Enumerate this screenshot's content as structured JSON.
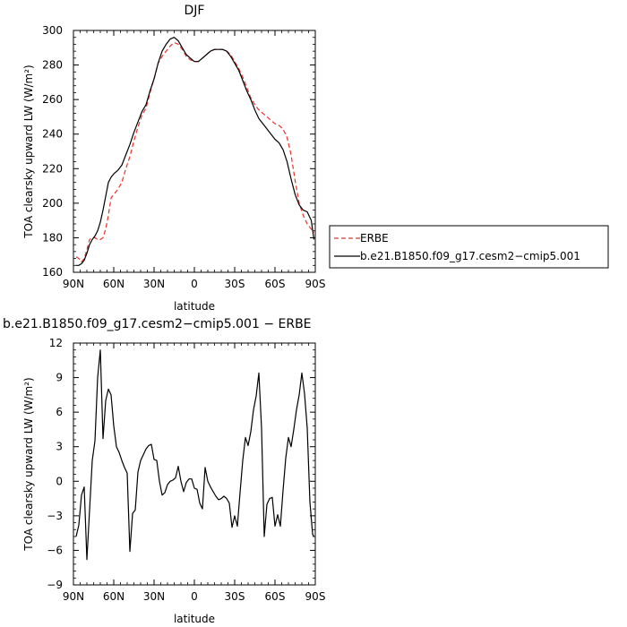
{
  "chart_data": [
    {
      "type": "line",
      "title": "DJF",
      "xlabel": "latitude",
      "ylabel": "TOA clearsky upward LW (W/m²)",
      "xlim": [
        -90,
        90
      ],
      "ylim": [
        160,
        300
      ],
      "x_ticks": [
        {
          "value": -90,
          "label": "90N"
        },
        {
          "value": -60,
          "label": "60N"
        },
        {
          "value": -30,
          "label": "30N"
        },
        {
          "value": 0,
          "label": "0"
        },
        {
          "value": 30,
          "label": "30S"
        },
        {
          "value": 60,
          "label": "60S"
        },
        {
          "value": 90,
          "label": "90S"
        }
      ],
      "y_ticks": [
        160,
        180,
        200,
        220,
        240,
        260,
        280,
        300
      ],
      "legend": "right",
      "series": [
        {
          "name": "ERBE",
          "color": "#e8312a",
          "style": "dashed",
          "x": [
            -88,
            -86,
            -84,
            -82,
            -80,
            -78,
            -76,
            -74,
            -72,
            -70,
            -68,
            -66,
            -64,
            -62,
            -60,
            -57,
            -54,
            -51,
            -48,
            -45,
            -42,
            -39,
            -36,
            -33,
            -30,
            -27,
            -24,
            -21,
            -18,
            -15,
            -12,
            -9,
            -6,
            -3,
            0,
            3,
            6,
            9,
            12,
            15,
            18,
            21,
            24,
            27,
            30,
            33,
            36,
            39,
            42,
            45,
            48,
            51,
            54,
            57,
            60,
            63,
            66,
            69,
            72,
            75,
            78,
            81,
            84,
            87,
            89
          ],
          "y": [
            169,
            168,
            166,
            168,
            173,
            179,
            180,
            180,
            179,
            179,
            180,
            185,
            193,
            203,
            205,
            208,
            212,
            220,
            227,
            236,
            244,
            251,
            255,
            264,
            272,
            281,
            285,
            288,
            291,
            293,
            292,
            289,
            285,
            283,
            282,
            282,
            284,
            286,
            288,
            289,
            289,
            289,
            288,
            286,
            282,
            278,
            273,
            267,
            261,
            257,
            254,
            252,
            250,
            248,
            246,
            245,
            243,
            238,
            228,
            213,
            200,
            193,
            188,
            185,
            183
          ]
        },
        {
          "name": "b.e21.B1850.f09_g17.cesm2−cmip5.001",
          "color": "#000000",
          "style": "solid",
          "x": [
            -88,
            -86,
            -84,
            -82,
            -80,
            -78,
            -76,
            -74,
            -72,
            -70,
            -68,
            -66,
            -64,
            -62,
            -60,
            -57,
            -54,
            -51,
            -48,
            -45,
            -42,
            -39,
            -36,
            -33,
            -30,
            -27,
            -24,
            -21,
            -18,
            -15,
            -12,
            -9,
            -6,
            -3,
            0,
            3,
            6,
            9,
            12,
            15,
            18,
            21,
            24,
            27,
            30,
            33,
            36,
            39,
            42,
            45,
            48,
            51,
            54,
            57,
            60,
            63,
            66,
            69,
            72,
            75,
            78,
            81,
            84,
            87,
            89
          ],
          "y": [
            164,
            164,
            165,
            167,
            171,
            176,
            179,
            181,
            184,
            189,
            196,
            204,
            212,
            215,
            217,
            219,
            222,
            228,
            234,
            241,
            247,
            253,
            257,
            265,
            272,
            281,
            288,
            292,
            295,
            296,
            294,
            290,
            286,
            284,
            282,
            282,
            284,
            286,
            288,
            289,
            289,
            289,
            288,
            285,
            281,
            277,
            271,
            265,
            260,
            254,
            249,
            246,
            243,
            240,
            237,
            235,
            231,
            224,
            214,
            205,
            199,
            196,
            195,
            190,
            179
          ]
        }
      ]
    },
    {
      "type": "line",
      "title": "b.e21.B1850.f09_g17.cesm2−cmip5.001  −  ERBE",
      "xlabel": "latitude",
      "ylabel": "TOA clearsky upward LW (W/m²)",
      "xlim": [
        -90,
        90
      ],
      "ylim": [
        -9,
        12
      ],
      "x_ticks": [
        {
          "value": -90,
          "label": "90N"
        },
        {
          "value": -60,
          "label": "60N"
        },
        {
          "value": -30,
          "label": "30N"
        },
        {
          "value": 0,
          "label": "0"
        },
        {
          "value": 30,
          "label": "30S"
        },
        {
          "value": 60,
          "label": "60S"
        },
        {
          "value": 90,
          "label": "90S"
        }
      ],
      "y_ticks": [
        -9,
        -6,
        -3,
        0,
        3,
        6,
        9,
        12
      ],
      "series": [
        {
          "color": "#000000",
          "style": "solid",
          "x": [
            -88,
            -86,
            -84,
            -82,
            -80,
            -78,
            -76,
            -74,
            -72,
            -70,
            -68,
            -66,
            -64,
            -62,
            -60,
            -58,
            -56,
            -54,
            -52,
            -50,
            -48,
            -46,
            -44,
            -42,
            -40,
            -38,
            -36,
            -34,
            -32,
            -30,
            -28,
            -26,
            -24,
            -22,
            -20,
            -18,
            -16,
            -14,
            -12,
            -10,
            -8,
            -6,
            -4,
            -2,
            0,
            2,
            4,
            6,
            8,
            10,
            12,
            14,
            16,
            18,
            20,
            22,
            24,
            26,
            28,
            30,
            32,
            34,
            36,
            38,
            40,
            42,
            44,
            46,
            48,
            50,
            52,
            54,
            56,
            58,
            60,
            62,
            64,
            66,
            68,
            70,
            72,
            74,
            76,
            78,
            80,
            82,
            84,
            86,
            88,
            89
          ],
          "y": [
            -4.8,
            -3.8,
            -1.2,
            -0.5,
            -6.8,
            -2.5,
            1.8,
            3.5,
            9.0,
            11.4,
            3.7,
            7.0,
            8.0,
            7.5,
            4.8,
            3.0,
            2.5,
            1.8,
            1.2,
            0.7,
            -6.1,
            -2.8,
            -2.5,
            0.8,
            1.8,
            2.3,
            2.8,
            3.1,
            3.2,
            1.9,
            1.8,
            0.0,
            -1.2,
            -1.0,
            -0.3,
            0.0,
            0.1,
            0.3,
            1.3,
            0.0,
            -0.9,
            -0.1,
            0.2,
            0.2,
            -0.6,
            -0.7,
            -1.9,
            -2.4,
            1.2,
            0.0,
            -0.5,
            -0.9,
            -1.3,
            -1.6,
            -1.5,
            -1.3,
            -1.5,
            -1.9,
            -4.0,
            -3.0,
            -3.9,
            -1.0,
            1.8,
            3.8,
            3.1,
            4.3,
            6.2,
            7.4,
            9.4,
            4.6,
            -4.8,
            -2.0,
            -1.5,
            -1.4,
            -3.9,
            -2.9,
            -3.9,
            -0.8,
            2.0,
            3.8,
            3.0,
            4.5,
            6.2,
            7.5,
            9.4,
            7.6,
            4.6,
            -1.8,
            -4.6,
            -4.8
          ]
        }
      ]
    }
  ]
}
